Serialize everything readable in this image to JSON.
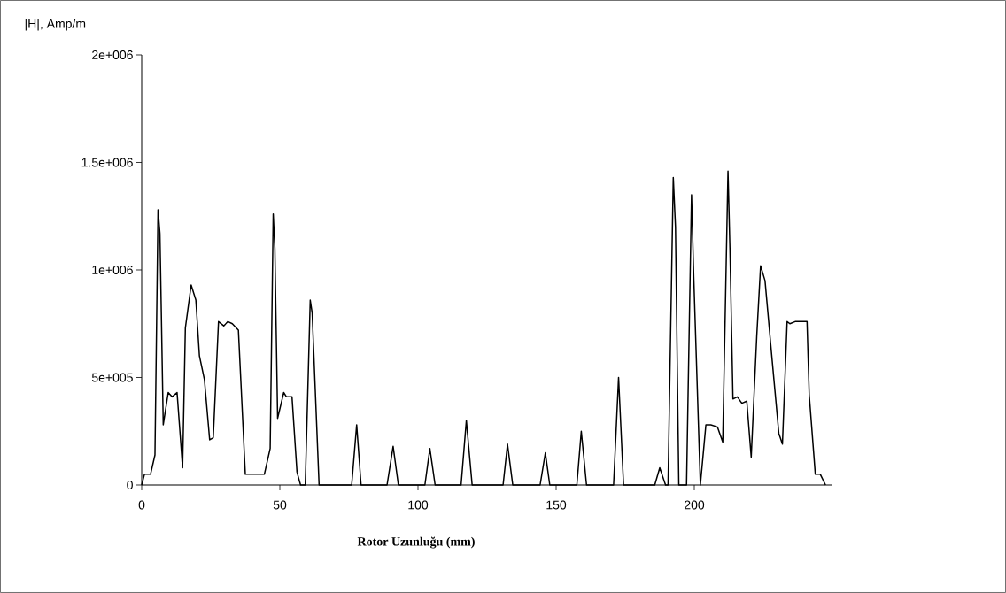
{
  "chart_data": {
    "type": "line",
    "xlabel": "Rotor Uzunluğu (mm)",
    "ylabel": "|H|, Amp/m",
    "color": "#000000",
    "xlim": [
      0,
      250
    ],
    "ylim": [
      0,
      2000000
    ],
    "xticks": [
      0,
      50,
      100,
      150,
      200
    ],
    "yticks": [
      0,
      {
        "value": 500000,
        "label": "5e+005"
      },
      {
        "value": 1000000,
        "label": "1e+006"
      },
      {
        "value": 1500000,
        "label": "1.5e+006"
      },
      {
        "value": 2000000,
        "label": "2e+006"
      }
    ],
    "x": [
      0,
      1,
      3.2,
      4.8,
      5.4,
      5.9,
      6.6,
      7.1,
      7.8,
      9.6,
      11,
      12.8,
      14.8,
      15.8,
      17.9,
      19.6,
      20.9,
      22.7,
      24.6,
      25.9,
      27.8,
      29.7,
      31.2,
      32.8,
      35,
      37.5,
      44.4,
      46.5,
      47.6,
      48.2,
      49.2,
      51.4,
      52.4,
      54.4,
      56.2,
      57.5,
      59.2,
      61,
      61.7,
      64.2,
      76,
      77.8,
      79.4,
      88.8,
      91,
      92.9,
      102.5,
      104.3,
      106.2,
      115.6,
      117.5,
      119.6,
      130.8,
      132.4,
      134.3,
      144.2,
      146.1,
      147.7,
      157.5,
      159.1,
      161,
      170.8,
      172.6,
      174.4,
      185.7,
      187.5,
      189.6,
      190.5,
      192.4,
      193.2,
      194.4,
      197.2,
      199,
      199.8,
      202.2,
      204.2,
      206,
      208.4,
      210.3,
      212.2,
      212.9,
      214,
      215.6,
      217.2,
      219,
      220.6,
      222.6,
      224,
      225.6,
      227.9,
      230.6,
      231.9,
      233.6,
      234.6,
      236.5,
      240.8,
      241.6,
      243.8,
      245.6,
      247.5
    ],
    "values": [
      0,
      50000,
      50000,
      140000,
      760000,
      1280000,
      1170000,
      800000,
      280000,
      430000,
      410000,
      430000,
      80000,
      730000,
      930000,
      860000,
      600000,
      490000,
      210000,
      220000,
      760000,
      740000,
      760000,
      750000,
      720000,
      50000,
      50000,
      170000,
      1260000,
      1100000,
      310000,
      430000,
      410000,
      410000,
      60000,
      0,
      0,
      860000,
      800000,
      0,
      0,
      280000,
      0,
      0,
      180000,
      0,
      0,
      170000,
      0,
      0,
      300000,
      0,
      0,
      190000,
      0,
      0,
      150000,
      0,
      0,
      250000,
      0,
      0,
      500000,
      0,
      0,
      80000,
      0,
      0,
      1430000,
      1200000,
      0,
      0,
      1350000,
      970000,
      0,
      280000,
      280000,
      270000,
      200000,
      1460000,
      1100000,
      400000,
      410000,
      380000,
      390000,
      130000,
      690000,
      1020000,
      950000,
      620000,
      240000,
      190000,
      760000,
      750000,
      760000,
      760000,
      420000,
      50000,
      50000,
      0
    ]
  }
}
